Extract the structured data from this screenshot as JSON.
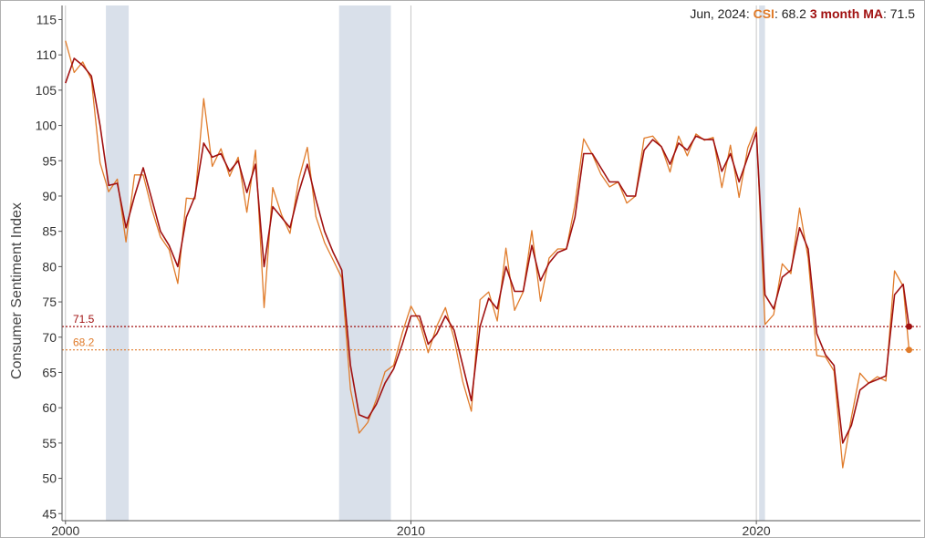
{
  "legend": {
    "date": "Jun, 2024",
    "csi_label": "CSI",
    "csi_value": "68.2",
    "ma_label": "3 month MA",
    "ma_value": "71.5"
  },
  "colors": {
    "csi": "#e07b2a",
    "ma": "#a01010",
    "recession": "#d9e0ea",
    "decade_line": "#c8c8c8"
  },
  "chart_data": {
    "type": "line",
    "title": "",
    "xlabel": "",
    "ylabel": "Consumer Sentiment Index",
    "xlim": [
      1999.9,
      2024.75
    ],
    "ylim": [
      44,
      117
    ],
    "y_ticks": [
      45,
      50,
      55,
      60,
      65,
      70,
      75,
      80,
      85,
      90,
      95,
      100,
      105,
      110,
      115
    ],
    "x_ticks": [
      {
        "value": 2000,
        "label": "2000"
      },
      {
        "value": 2010,
        "label": "2010"
      },
      {
        "value": 2020,
        "label": "2020"
      }
    ],
    "recessions": [
      [
        2001.17,
        2001.83
      ],
      [
        2007.92,
        2009.42
      ],
      [
        2020.08,
        2020.25
      ]
    ],
    "reference_lines": [
      {
        "label": "71.5",
        "value": 71.5,
        "series": "3 month MA"
      },
      {
        "label": "68.2",
        "value": 68.2,
        "series": "CSI"
      }
    ],
    "series": [
      {
        "name": "CSI",
        "x": [
          2000.0,
          2000.25,
          2000.5,
          2000.75,
          2001.0,
          2001.25,
          2001.5,
          2001.75,
          2002.0,
          2002.25,
          2002.5,
          2002.75,
          2003.0,
          2003.25,
          2003.5,
          2003.75,
          2004.0,
          2004.25,
          2004.5,
          2004.75,
          2005.0,
          2005.25,
          2005.5,
          2005.75,
          2006.0,
          2006.25,
          2006.5,
          2006.75,
          2007.0,
          2007.25,
          2007.5,
          2007.75,
          2008.0,
          2008.25,
          2008.5,
          2008.75,
          2009.0,
          2009.25,
          2009.5,
          2009.75,
          2010.0,
          2010.25,
          2010.5,
          2010.75,
          2011.0,
          2011.25,
          2011.5,
          2011.75,
          2012.0,
          2012.25,
          2012.5,
          2012.75,
          2013.0,
          2013.25,
          2013.5,
          2013.75,
          2014.0,
          2014.25,
          2014.5,
          2014.75,
          2015.0,
          2015.25,
          2015.5,
          2015.75,
          2016.0,
          2016.25,
          2016.5,
          2016.75,
          2017.0,
          2017.25,
          2017.5,
          2017.75,
          2018.0,
          2018.25,
          2018.5,
          2018.75,
          2019.0,
          2019.25,
          2019.5,
          2019.75,
          2020.0,
          2020.25,
          2020.5,
          2020.75,
          2021.0,
          2021.25,
          2021.5,
          2021.75,
          2022.0,
          2022.25,
          2022.5,
          2022.75,
          2023.0,
          2023.25,
          2023.5,
          2023.75,
          2024.0,
          2024.25,
          2024.42
        ],
        "values": [
          112.0,
          107.5,
          109.0,
          106.5,
          94.7,
          90.6,
          92.4,
          83.5,
          93.0,
          93.0,
          88.1,
          84.2,
          82.4,
          77.6,
          89.7,
          89.6,
          103.8,
          94.2,
          96.7,
          92.8,
          95.5,
          87.7,
          96.5,
          74.2,
          91.2,
          87.4,
          84.7,
          92.3,
          96.9,
          87.1,
          83.4,
          80.9,
          78.4,
          62.6,
          56.4,
          57.9,
          61.2,
          65.1,
          66.0,
          70.6,
          74.4,
          72.2,
          67.8,
          71.6,
          74.2,
          69.8,
          63.7,
          59.5,
          75.3,
          76.4,
          72.3,
          82.6,
          73.8,
          76.4,
          85.1,
          75.1,
          81.2,
          82.5,
          82.5,
          88.8,
          98.1,
          95.9,
          93.1,
          91.3,
          92.0,
          89.0,
          90.0,
          98.2,
          98.5,
          97.0,
          93.4,
          98.5,
          95.7,
          98.8,
          97.9,
          98.3,
          91.2,
          97.2,
          89.8,
          96.8,
          99.8,
          71.8,
          73.2,
          80.4,
          79.0,
          88.3,
          81.2,
          67.4,
          67.2,
          65.2,
          51.5,
          58.6,
          64.9,
          63.5,
          64.4,
          63.8,
          79.4,
          77.2,
          68.2
        ]
      },
      {
        "name": "3 month MA",
        "x": [
          2000.0,
          2000.25,
          2000.5,
          2000.75,
          2001.0,
          2001.25,
          2001.5,
          2001.75,
          2002.0,
          2002.25,
          2002.5,
          2002.75,
          2003.0,
          2003.25,
          2003.5,
          2003.75,
          2004.0,
          2004.25,
          2004.5,
          2004.75,
          2005.0,
          2005.25,
          2005.5,
          2005.75,
          2006.0,
          2006.25,
          2006.5,
          2006.75,
          2007.0,
          2007.25,
          2007.5,
          2007.75,
          2008.0,
          2008.25,
          2008.5,
          2008.75,
          2009.0,
          2009.25,
          2009.5,
          2009.75,
          2010.0,
          2010.25,
          2010.5,
          2010.75,
          2011.0,
          2011.25,
          2011.5,
          2011.75,
          2012.0,
          2012.25,
          2012.5,
          2012.75,
          2013.0,
          2013.25,
          2013.5,
          2013.75,
          2014.0,
          2014.25,
          2014.5,
          2014.75,
          2015.0,
          2015.25,
          2015.5,
          2015.75,
          2016.0,
          2016.25,
          2016.5,
          2016.75,
          2017.0,
          2017.25,
          2017.5,
          2017.75,
          2018.0,
          2018.25,
          2018.5,
          2018.75,
          2019.0,
          2019.25,
          2019.5,
          2019.75,
          2020.0,
          2020.25,
          2020.5,
          2020.75,
          2021.0,
          2021.25,
          2021.5,
          2021.75,
          2022.0,
          2022.25,
          2022.5,
          2022.75,
          2023.0,
          2023.25,
          2023.5,
          2023.75,
          2024.0,
          2024.25,
          2024.42
        ],
        "values": [
          106.0,
          109.5,
          108.5,
          107.0,
          100.0,
          91.5,
          91.8,
          85.5,
          90.0,
          94.0,
          89.5,
          85.0,
          83.0,
          80.0,
          87.0,
          90.0,
          97.5,
          95.5,
          96.0,
          93.5,
          95.0,
          90.5,
          94.5,
          80.0,
          88.5,
          87.0,
          85.5,
          90.5,
          94.5,
          89.5,
          85.0,
          82.0,
          79.5,
          66.0,
          59.0,
          58.5,
          60.5,
          63.5,
          65.5,
          69.0,
          73.0,
          73.0,
          69.0,
          70.5,
          73.0,
          71.0,
          66.0,
          61.0,
          71.5,
          75.5,
          74.0,
          80.0,
          76.5,
          76.5,
          83.0,
          78.0,
          80.5,
          82.0,
          82.5,
          87.0,
          96.0,
          96.0,
          94.0,
          92.0,
          92.0,
          90.0,
          90.0,
          96.5,
          98.0,
          97.0,
          94.5,
          97.5,
          96.5,
          98.5,
          98.0,
          98.0,
          93.5,
          96.0,
          92.0,
          95.5,
          99.0,
          76.0,
          74.0,
          78.5,
          79.5,
          85.5,
          82.5,
          70.5,
          67.5,
          66.0,
          55.0,
          57.5,
          62.5,
          63.5,
          64.0,
          64.5,
          76.0,
          77.5,
          71.5
        ]
      }
    ]
  }
}
